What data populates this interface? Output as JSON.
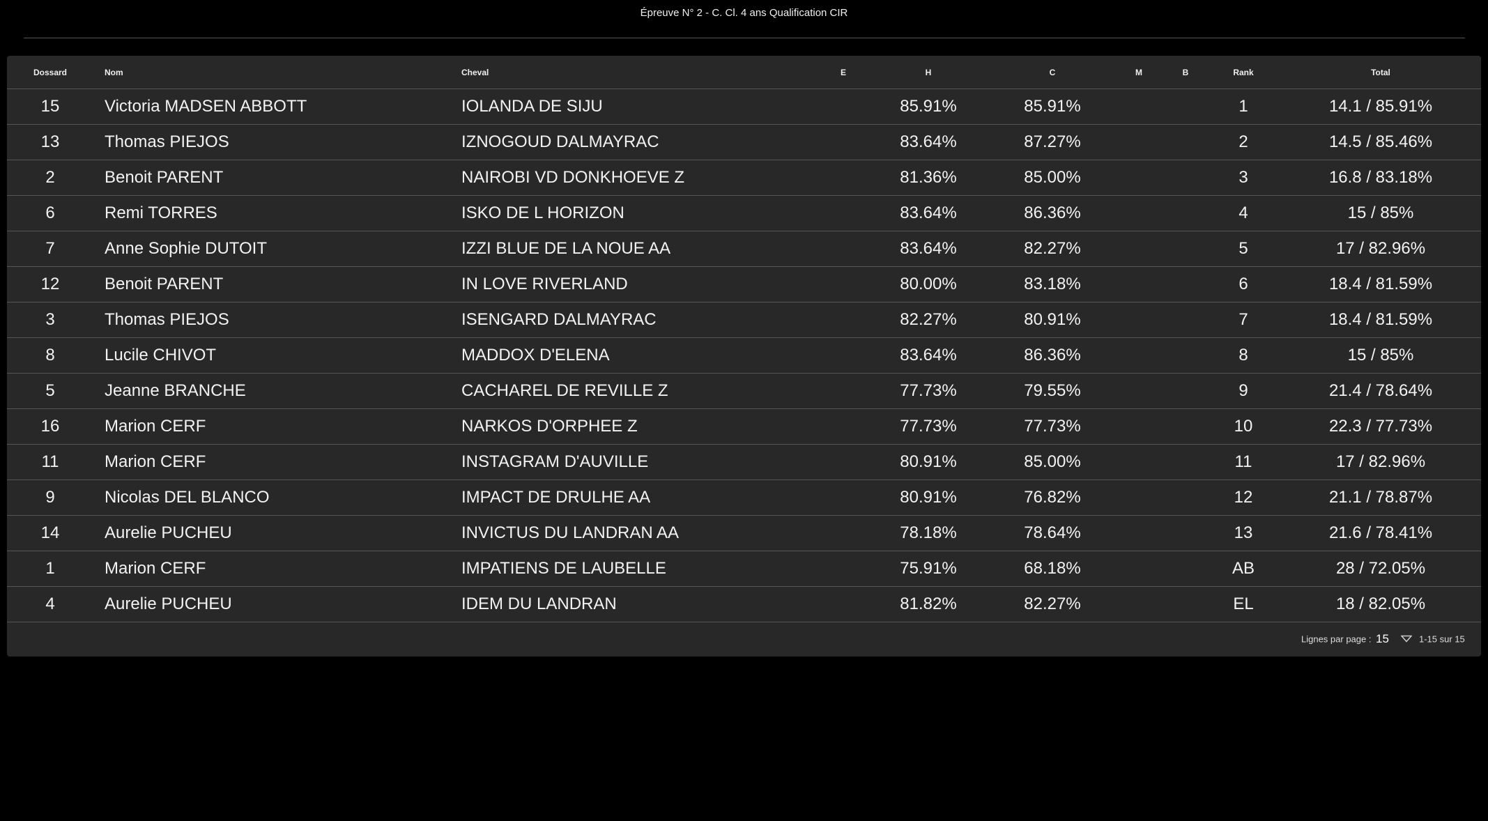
{
  "title": "Épreuve N° 2 - C. Cl. 4 ans Qualification CIR",
  "columns": [
    "Dossard",
    "Nom",
    "Cheval",
    "E",
    "H",
    "C",
    "M",
    "B",
    "Rank",
    "Total"
  ],
  "rows": [
    [
      "15",
      "Victoria MADSEN ABBOTT",
      "IOLANDA DE SIJU",
      "",
      "85.91%",
      "85.91%",
      "",
      "",
      "1",
      "14.1 / 85.91%"
    ],
    [
      "13",
      "Thomas PIEJOS",
      "IZNOGOUD DALMAYRAC",
      "",
      "83.64%",
      "87.27%",
      "",
      "",
      "2",
      "14.5 / 85.46%"
    ],
    [
      "2",
      "Benoit PARENT",
      "NAIROBI VD DONKHOEVE Z",
      "",
      "81.36%",
      "85.00%",
      "",
      "",
      "3",
      "16.8 / 83.18%"
    ],
    [
      "6",
      "Remi TORRES",
      "ISKO DE L HORIZON",
      "",
      "83.64%",
      "86.36%",
      "",
      "",
      "4",
      "15 / 85%"
    ],
    [
      "7",
      "Anne Sophie DUTOIT",
      "IZZI BLUE DE LA NOUE AA",
      "",
      "83.64%",
      "82.27%",
      "",
      "",
      "5",
      "17 / 82.96%"
    ],
    [
      "12",
      "Benoit PARENT",
      "IN LOVE RIVERLAND",
      "",
      "80.00%",
      "83.18%",
      "",
      "",
      "6",
      "18.4 / 81.59%"
    ],
    [
      "3",
      "Thomas PIEJOS",
      "ISENGARD DALMAYRAC",
      "",
      "82.27%",
      "80.91%",
      "",
      "",
      "7",
      "18.4 / 81.59%"
    ],
    [
      "8",
      "Lucile CHIVOT",
      "MADDOX D'ELENA",
      "",
      "83.64%",
      "86.36%",
      "",
      "",
      "8",
      "15 / 85%"
    ],
    [
      "5",
      "Jeanne BRANCHE",
      "CACHAREL DE REVILLE Z",
      "",
      "77.73%",
      "79.55%",
      "",
      "",
      "9",
      "21.4 / 78.64%"
    ],
    [
      "16",
      "Marion CERF",
      "NARKOS D'ORPHEE Z",
      "",
      "77.73%",
      "77.73%",
      "",
      "",
      "10",
      "22.3 / 77.73%"
    ],
    [
      "11",
      "Marion CERF",
      "INSTAGRAM D'AUVILLE",
      "",
      "80.91%",
      "85.00%",
      "",
      "",
      "11",
      "17 / 82.96%"
    ],
    [
      "9",
      "Nicolas DEL BLANCO",
      "IMPACT DE DRULHE AA",
      "",
      "80.91%",
      "76.82%",
      "",
      "",
      "12",
      "21.1 / 78.87%"
    ],
    [
      "14",
      "Aurelie PUCHEU",
      "INVICTUS DU LANDRAN AA",
      "",
      "78.18%",
      "78.64%",
      "",
      "",
      "13",
      "21.6 / 78.41%"
    ],
    [
      "1",
      "Marion CERF",
      "IMPATIENS DE LAUBELLE",
      "",
      "75.91%",
      "68.18%",
      "",
      "",
      "AB",
      "28 / 72.05%"
    ],
    [
      "4",
      "Aurelie PUCHEU",
      "IDEM DU LANDRAN",
      "",
      "81.82%",
      "82.27%",
      "",
      "",
      "EL",
      "18 / 82.05%"
    ]
  ],
  "footer": {
    "rows_per_page_label": "Lignes par page :",
    "rows_per_page_value": "15",
    "dropdown_icon": "triangle-down-outline",
    "range": "1-15 sur 15"
  }
}
